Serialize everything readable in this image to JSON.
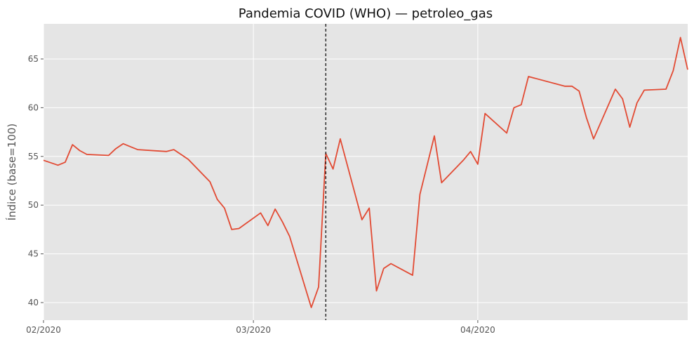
{
  "chart_data": {
    "type": "line",
    "title": "Pandemia COVID (WHO) — petroleo_gas",
    "xlabel": "",
    "ylabel": "Índice (base=100)",
    "xlim": [
      "2020-02-01",
      "2020-04-30"
    ],
    "ylim": [
      38.2,
      68.6
    ],
    "x_ticks": [
      {
        "value": "2020-02-01",
        "label": "02/2020"
      },
      {
        "value": "2020-03-01",
        "label": "03/2020"
      },
      {
        "value": "2020-04-01",
        "label": "04/2020"
      }
    ],
    "y_ticks": [
      40,
      45,
      50,
      55,
      60,
      65
    ],
    "grid": true,
    "style": {
      "background": "#e5e5e5",
      "grid_color": "#ffffff",
      "line_color": "#e24a33",
      "vline_color": "#000000"
    },
    "event_line": {
      "x": "2020-03-11",
      "style": "dashed"
    },
    "series": [
      {
        "name": "",
        "x": [
          "2020-02-01",
          "2020-02-03",
          "2020-02-04",
          "2020-02-05",
          "2020-02-06",
          "2020-02-07",
          "2020-02-10",
          "2020-02-11",
          "2020-02-12",
          "2020-02-13",
          "2020-02-14",
          "2020-02-18",
          "2020-02-19",
          "2020-02-20",
          "2020-02-21",
          "2020-02-24",
          "2020-02-25",
          "2020-02-26",
          "2020-02-27",
          "2020-02-28",
          "2020-03-02",
          "2020-03-03",
          "2020-03-04",
          "2020-03-05",
          "2020-03-06",
          "2020-03-09",
          "2020-03-10",
          "2020-03-11",
          "2020-03-12",
          "2020-03-13",
          "2020-03-16",
          "2020-03-17",
          "2020-03-18",
          "2020-03-19",
          "2020-03-20",
          "2020-03-23",
          "2020-03-24",
          "2020-03-25",
          "2020-03-26",
          "2020-03-27",
          "2020-03-30",
          "2020-03-31",
          "2020-04-01",
          "2020-04-02",
          "2020-04-05",
          "2020-04-06",
          "2020-04-07",
          "2020-04-08",
          "2020-04-13",
          "2020-04-14",
          "2020-04-15",
          "2020-04-16",
          "2020-04-17",
          "2020-04-20",
          "2020-04-21",
          "2020-04-22",
          "2020-04-23",
          "2020-04-24",
          "2020-04-27",
          "2020-04-28",
          "2020-04-29",
          "2020-04-30"
        ],
        "y": [
          54.6,
          54.1,
          54.4,
          56.2,
          55.6,
          55.2,
          55.1,
          55.8,
          56.3,
          56.0,
          55.7,
          55.5,
          55.7,
          55.2,
          54.7,
          52.4,
          50.6,
          49.7,
          47.5,
          47.6,
          49.2,
          47.9,
          49.6,
          48.3,
          46.8,
          39.5,
          41.6,
          55.3,
          53.7,
          56.8,
          48.5,
          49.7,
          41.2,
          43.5,
          44.0,
          42.8,
          51.1,
          54.1,
          57.1,
          52.3,
          54.6,
          55.5,
          54.2,
          59.4,
          57.4,
          60.0,
          60.3,
          63.2,
          62.2,
          62.2,
          61.7,
          59.0,
          56.8,
          61.9,
          60.9,
          58.0,
          60.5,
          61.8,
          61.9,
          63.8,
          67.2,
          63.9
        ]
      }
    ]
  }
}
